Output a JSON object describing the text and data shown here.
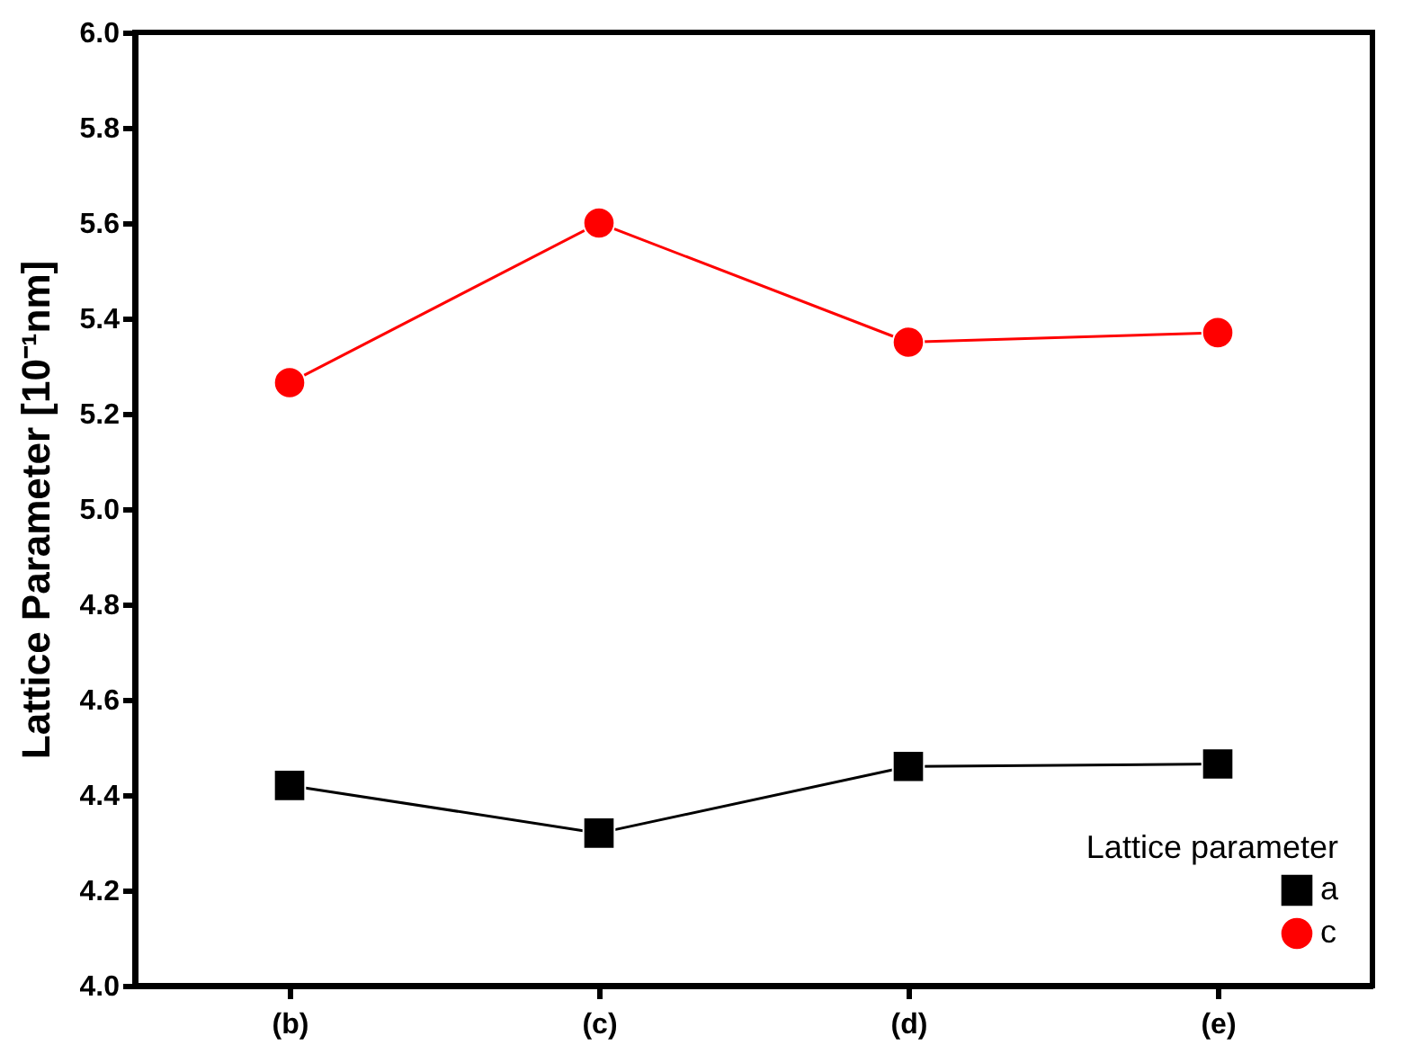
{
  "chart_data": {
    "type": "line",
    "ylabel": "Lattice Parameter [10⁻¹nm]",
    "legend_title": "Lattice parameter",
    "categories": [
      "(b)",
      "(c)",
      "(d)",
      "(e)"
    ],
    "series": [
      {
        "name": "a",
        "color": "#000000",
        "marker": "square",
        "values": [
          4.42,
          4.32,
          4.46,
          4.465
        ]
      },
      {
        "name": "c",
        "color": "#ff0000",
        "marker": "circle",
        "values": [
          5.265,
          5.6,
          5.35,
          5.37
        ]
      }
    ],
    "ylim": [
      4.0,
      6.0
    ],
    "yticks": [
      {
        "value": 4,
        "label": "4.0"
      },
      4.2,
      4.4,
      4.6,
      4.8,
      {
        "value": 5,
        "label": "5.0"
      },
      5.2,
      5.4,
      5.6,
      5.8,
      {
        "value": 6,
        "label": "6.0"
      }
    ],
    "grid": false,
    "legend": "bottom right",
    "line_style": "solid"
  }
}
